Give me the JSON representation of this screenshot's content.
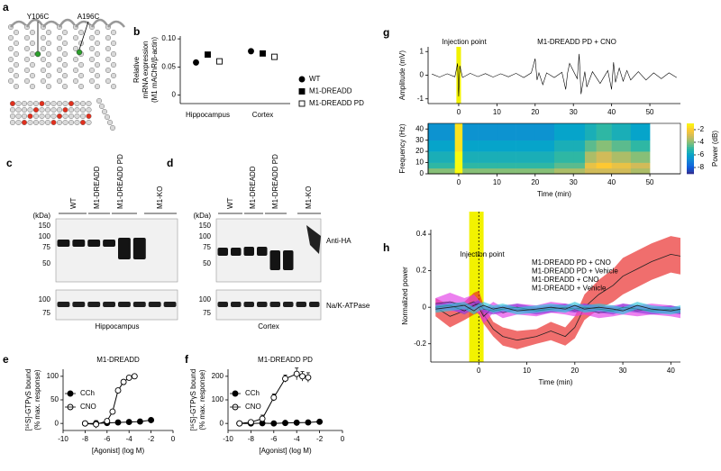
{
  "figure": {
    "a": {
      "label": "a",
      "mutations": [
        "Y106C",
        "A196C"
      ]
    },
    "c": {
      "label": "c",
      "lanes": [
        "WT",
        "M1-DREADD",
        "M1-DREADD PD",
        "M1-KO"
      ],
      "unit": "(kDa)",
      "upper_markers": [
        150,
        100,
        75,
        50
      ],
      "lower_markers": [
        100,
        75
      ],
      "tissue": "Hippocampus"
    },
    "d": {
      "label": "d",
      "lanes": [
        "WT",
        "M1-DREADD",
        "M1-DREADD PD",
        "M1-KO"
      ],
      "unit": "(kDa)",
      "upper_markers": [
        150,
        100,
        75,
        50
      ],
      "lower_markers": [
        100,
        75
      ],
      "tissue": "Cortex",
      "antibodies": [
        "Anti-HA",
        "Na/K-ATPase"
      ]
    }
  },
  "chart_data": [
    {
      "type": "dot",
      "panel": "b",
      "y_label": [
        "Relative",
        "mRNA expression",
        "(M1 mAChR/β-actin)"
      ],
      "categories": [
        "Hippocampus",
        "Cortex"
      ],
      "series": [
        {
          "name": "WT",
          "marker": "circle",
          "marker_fill": "#000000",
          "color": "#000000",
          "values": [
            0.058,
            0.078
          ]
        },
        {
          "name": "M1-DREADD",
          "marker": "square",
          "marker_fill": "#000000",
          "color": "#000000",
          "values": [
            0.072,
            0.074
          ]
        },
        {
          "name": "M1-DREADD PD",
          "marker": "square",
          "marker_fill": "#ffffff",
          "color": "#000000",
          "values": [
            0.06,
            0.068
          ]
        }
      ],
      "ylim": [
        -0.015,
        0.105
      ],
      "yticks": [
        0,
        0.05,
        {
          "value": 0.1,
          "label": "0.10"
        }
      ],
      "legend": "right"
    },
    {
      "type": "line",
      "panel": "e",
      "title": "M1-DREADD",
      "x_label": "[Agonist] (log M)",
      "y_label": [
        "[³⁵S]-GTPγS bound",
        "(% max. response)"
      ],
      "series": [
        {
          "name": "CCh",
          "marker": "circle",
          "marker_fill": "#000000",
          "color": "#000000",
          "x": [
            -8,
            -7,
            -6,
            -5,
            -4,
            -3,
            -2
          ],
          "values": [
            0,
            0,
            1,
            2,
            3,
            4,
            7
          ]
        },
        {
          "name": "CNO",
          "marker": "circle",
          "marker_fill": "#ffffff",
          "color": "#000000",
          "x": [
            -8,
            -7,
            -6,
            -5.5,
            -5,
            -4.5,
            -4,
            -3.5
          ],
          "values": [
            0,
            -2,
            5,
            25,
            70,
            88,
            97,
            100
          ],
          "error": [
            2,
            8,
            3,
            4,
            4,
            3,
            3,
            3
          ]
        }
      ],
      "xlim": [
        -10,
        0
      ],
      "xticks": [
        -10,
        -8,
        -6,
        -4,
        -2,
        0
      ],
      "ylim": [
        -15,
        115
      ],
      "yticks": [
        0,
        50,
        100
      ],
      "legend": "upper left"
    },
    {
      "type": "line",
      "panel": "f",
      "title": "M1-DREADD PD",
      "x_label": "[Agonist] (log M)",
      "y_label": [
        "[³⁵S]-GTPγS bound",
        "(% max. response)"
      ],
      "series": [
        {
          "name": "CCh",
          "marker": "circle",
          "marker_fill": "#000000",
          "color": "#000000",
          "x": [
            -9,
            -8,
            -7,
            -6,
            -5,
            -4,
            -3,
            -2
          ],
          "values": [
            0,
            0,
            1,
            0,
            2,
            3,
            4,
            7
          ]
        },
        {
          "name": "CNO",
          "marker": "circle",
          "marker_fill": "#ffffff",
          "color": "#000000",
          "x": [
            -9,
            -8,
            -7,
            -6,
            -5,
            -4,
            -3.5,
            -3
          ],
          "values": [
            0,
            5,
            20,
            110,
            190,
            210,
            200,
            195
          ],
          "error": [
            5,
            5,
            15,
            15,
            15,
            25,
            20,
            20
          ]
        }
      ],
      "xlim": [
        -10,
        0
      ],
      "xticks": [
        -10,
        -8,
        -6,
        -4,
        -2,
        0
      ],
      "ylim": [
        -30,
        230
      ],
      "yticks": [
        0,
        100,
        200
      ],
      "legend": "upper left"
    },
    {
      "type": "line",
      "panel": "g",
      "title": "M1-DREADD PD + CNO",
      "annotation": "Injection point",
      "y_label": [
        "Amplitude (mV)"
      ],
      "highlight": [
        -0.6,
        0.6
      ],
      "highlight_color": "#f2f200",
      "x": [
        -7,
        -5,
        -3,
        -1,
        -0.3,
        0,
        0.3,
        1,
        3,
        5,
        7,
        9,
        11,
        13,
        15,
        17,
        19,
        20,
        20.5,
        21,
        22,
        23,
        25,
        27,
        28,
        28.5,
        29,
        31,
        31.5,
        32,
        33,
        33.5,
        35,
        37,
        39,
        40,
        40.5,
        41,
        42,
        43,
        44,
        45,
        47,
        49,
        51,
        53,
        55,
        57
      ],
      "series": [
        {
          "color": "#000000",
          "values": [
            0.05,
            -0.08,
            0.06,
            -0.07,
            0.5,
            -0.9,
            0.4,
            -0.1,
            0.08,
            -0.06,
            0.07,
            -0.08,
            0.06,
            -0.07,
            0.08,
            -0.1,
            0.1,
            0.7,
            -0.2,
            0.1,
            -0.4,
            0.1,
            -0.1,
            0.12,
            -0.6,
            0.1,
            0.5,
            -0.15,
            0.9,
            -0.8,
            0.15,
            -0.5,
            0.15,
            -0.35,
            0.2,
            -0.6,
            0.55,
            -0.3,
            0.3,
            -0.25,
            0.2,
            -0.2,
            0.15,
            -0.2,
            0.1,
            -0.15,
            0.1,
            -0.1
          ]
        }
      ],
      "xlim": [
        -8,
        58
      ],
      "xticks": [
        0,
        10,
        20,
        30,
        40,
        50
      ],
      "ylim": [
        -1.2,
        1.2
      ],
      "yticks": [
        -1,
        0,
        1
      ]
    },
    {
      "type": "heatmap",
      "x_label": "Time (min)",
      "y_label": [
        "Frequency (Hz)"
      ],
      "colorbar_label": "Power (dB)",
      "x_edges": [
        -8,
        -1,
        1,
        5,
        10,
        15,
        20,
        25,
        30,
        33,
        36,
        40,
        45,
        50
      ],
      "y_edges": [
        0,
        5,
        10,
        20,
        30,
        45
      ],
      "z": [
        [
          -4,
          -1,
          -4,
          -4,
          -4,
          -4,
          -4,
          -3.5,
          -3.5,
          -3,
          -3,
          -3,
          -3.5
        ],
        [
          -5,
          -1,
          -5,
          -5,
          -5,
          -5,
          -5,
          -4.5,
          -4.5,
          -2.5,
          -2,
          -2.5,
          -3
        ],
        [
          -5.5,
          -1,
          -5.5,
          -5.5,
          -5.5,
          -5.5,
          -5.5,
          -5,
          -5,
          -3.5,
          -3,
          -3.5,
          -4
        ],
        [
          -6,
          -1.5,
          -6,
          -6,
          -6,
          -6,
          -6,
          -5.5,
          -5.5,
          -4.5,
          -4,
          -4.5,
          -5
        ],
        [
          -6.5,
          -1.5,
          -6.5,
          -6.5,
          -6.5,
          -6.5,
          -6.5,
          -6,
          -6,
          -5.5,
          -5,
          -5.5,
          -6
        ]
      ],
      "zlim": [
        -9,
        -1
      ],
      "zticks": [
        -2,
        -4,
        -6,
        -8
      ],
      "colormap": [
        "#352a87",
        "#0f5cdd",
        "#1481d6",
        "#06a4ca",
        "#2eb7a4",
        "#87bf77",
        "#d1bb59",
        "#fec832",
        "#f9fb0e"
      ],
      "xlim": [
        -8,
        58
      ],
      "xticks": [
        0,
        10,
        20,
        30,
        40,
        50
      ],
      "ylim": [
        0,
        45
      ],
      "yticks": [
        0,
        10,
        20,
        30,
        40
      ]
    },
    {
      "type": "line",
      "panel": "h",
      "annotation": "Injection point",
      "x_label": "Time (min)",
      "y_label": [
        "Normalized power"
      ],
      "highlight": [
        -2,
        1
      ],
      "highlight_color": "#f2f200",
      "injection_x": 0,
      "band": true,
      "line_color": "#222222",
      "legend": "upper center",
      "x": [
        -9,
        -6,
        -3,
        -1,
        0,
        1,
        3,
        5,
        8,
        12,
        15,
        18,
        20,
        22,
        25,
        28,
        30,
        33,
        36,
        40,
        42
      ],
      "series": [
        {
          "name": "M1-DREADD PD + CNO",
          "color": "#e8201f",
          "values": [
            0,
            -0.05,
            -0.02,
            0.02,
            0.03,
            -0.04,
            -0.12,
            -0.16,
            -0.18,
            -0.16,
            -0.13,
            -0.16,
            -0.11,
            0,
            0.07,
            0.12,
            0.17,
            0.21,
            0.25,
            0.29,
            0.28
          ],
          "error": [
            0.05,
            0.06,
            0.05,
            0.06,
            0.06,
            0.05,
            0.04,
            0.05,
            0.05,
            0.04,
            0.05,
            0.05,
            0.06,
            0.07,
            0.08,
            0.09,
            0.1,
            0.1,
            0.1,
            0.1,
            0.1
          ]
        },
        {
          "name": "M1-DREADD PD + Vehicle",
          "color": "#e23ce6",
          "values": [
            0.02,
            0.03,
            0.01,
            0.03,
            0,
            -0.05,
            0,
            -0.03,
            -0.01,
            -0.02,
            0,
            -0.01,
            -0.02,
            -0.01,
            -0.03,
            -0.02,
            -0.01,
            -0.02,
            -0.01,
            -0.02,
            -0.03
          ],
          "error": [
            0.03,
            0.05,
            0.04,
            0.04,
            0.04,
            0.04,
            0.03,
            0.03,
            0.03,
            0.03,
            0.03,
            0.03,
            0.03,
            0.03,
            0.03,
            0.03,
            0.03,
            0.03,
            0.03,
            0.03,
            0.03
          ]
        },
        {
          "name": "M1-DREADD + CNO",
          "color": "#8a3fd8",
          "values": [
            0,
            0.01,
            -0.02,
            0.01,
            0.02,
            -0.01,
            -0.02,
            -0.01,
            0,
            -0.02,
            -0.01,
            0,
            -0.01,
            0,
            -0.01,
            -0.02,
            0,
            -0.01,
            -0.02,
            -0.01,
            -0.02
          ],
          "error": [
            0.02,
            0.02,
            0.02,
            0.02,
            0.02,
            0.02,
            0.02,
            0.02,
            0.02,
            0.02,
            0.02,
            0.02,
            0.02,
            0.02,
            0.02,
            0.02,
            0.02,
            0.02,
            0.02,
            0.02,
            0.02
          ]
        },
        {
          "name": "M1-DREADD + Vehicle",
          "color": "#2ec4d8",
          "values": [
            -0.01,
            0,
            0.01,
            -0.02,
            0,
            0.01,
            -0.01,
            0,
            -0.02,
            -0.01,
            0,
            -0.01,
            0.01,
            -0.01,
            0,
            -0.01,
            -0.02,
            0.01,
            -0.01,
            -0.02,
            -0.01
          ],
          "error": [
            0.02,
            0.02,
            0.02,
            0.02,
            0.02,
            0.02,
            0.02,
            0.02,
            0.02,
            0.02,
            0.02,
            0.02,
            0.02,
            0.02,
            0.02,
            0.02,
            0.02,
            0.02,
            0.02,
            0.02,
            0.02
          ]
        }
      ],
      "xlim": [
        -10,
        42
      ],
      "xticks": [
        0,
        10,
        20,
        30,
        40
      ],
      "ylim": [
        -0.3,
        0.425
      ],
      "yticks": [
        -0.2,
        0,
        0.2,
        0.4
      ]
    }
  ]
}
